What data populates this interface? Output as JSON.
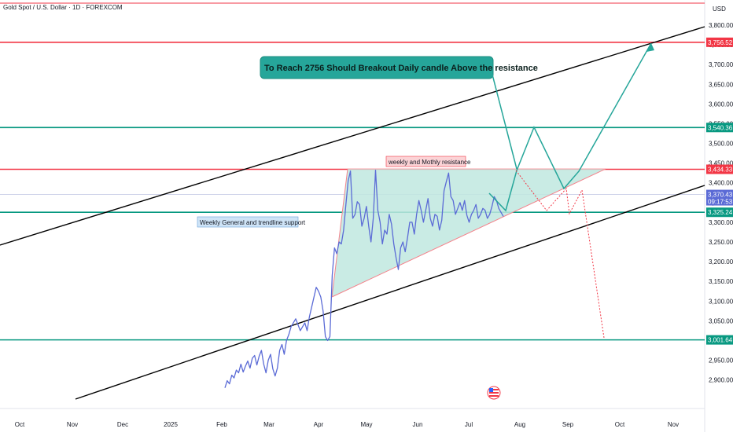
{
  "header": {
    "symbol_title": "Gold Spot / U.S. Dollar · 1D · FOREXCOM",
    "currency": "USD"
  },
  "colors": {
    "red_line": "#f23645",
    "green_line": "#089981",
    "price_line": "#5b6bd6",
    "wedge_fill": "#bfe8df",
    "callout_bg": "#26a69a",
    "current_badge": "#5b6bd6",
    "axis_text": "#131722"
  },
  "chart_data": {
    "type": "line",
    "y_axis": {
      "min": 2865,
      "max": 3820,
      "ticks": [
        "3,800.00",
        "3,750.00",
        "3,700.00",
        "3,650.00",
        "3,600.00",
        "3,550.00",
        "3,500.00",
        "3,450.00",
        "3,400.00",
        "3,350.00",
        "3,300.00",
        "3,250.00",
        "3,200.00",
        "3,150.00",
        "3,100.00",
        "3,050.00",
        "3,000.00",
        "2,950.00",
        "2,900.00"
      ]
    },
    "x_axis": {
      "labels": [
        "Oct",
        "Nov",
        "Dec",
        "2025",
        "Feb",
        "Mar",
        "Apr",
        "May",
        "Jun",
        "Jul",
        "Aug",
        "Sep",
        "Oct",
        "Nov"
      ]
    },
    "price_badges": [
      {
        "label": "3,756.52",
        "value": 3756.52,
        "color": "#f23645"
      },
      {
        "label": "3,540.36",
        "value": 3540.36,
        "color": "#089981"
      },
      {
        "label": "3,434.33",
        "value": 3434.33,
        "color": "#f23645"
      },
      {
        "label": "3,370.43",
        "sublabel": "09:17:53",
        "value": 3370.43,
        "color": "#5b6bd6"
      },
      {
        "label": "3,325.24",
        "value": 3325.24,
        "color": "#089981"
      },
      {
        "label": "3,001.64",
        "value": 3001.64,
        "color": "#089981"
      }
    ],
    "horizontal_levels": [
      {
        "value": 3820,
        "color": "#f23645"
      },
      {
        "value": 3756.52,
        "color": "#f23645"
      },
      {
        "value": 3540.36,
        "color": "#089981"
      },
      {
        "value": 3434.33,
        "color": "#f23645"
      },
      {
        "value": 3325.24,
        "color": "#089981"
      },
      {
        "value": 3001.64,
        "color": "#089981"
      }
    ],
    "annotations": [
      {
        "text": "To Reach 2756 Should Breakout Daily candle Above the resistance",
        "type": "callout"
      },
      {
        "text": "weekly and Mothly resistance",
        "type": "label-red"
      },
      {
        "text": "Weekly General and trendline support",
        "type": "label-blue"
      }
    ],
    "series": [
      {
        "values": [
          2880,
          2898,
          2890,
          2912,
          2905,
          2925,
          2918,
          2940,
          2920,
          2935,
          2948,
          2930,
          2955,
          2962,
          2938,
          2960,
          2975,
          2940,
          2918,
          2950,
          2965,
          2928,
          2910,
          2930,
          2975,
          2990,
          2965,
          3000,
          3015,
          3035,
          3045,
          3055,
          3040,
          3025,
          3035,
          3045,
          3025,
          3060,
          3085,
          3110,
          3135,
          3125,
          3110,
          3075,
          3010,
          3000,
          3010,
          3165,
          3235,
          3220,
          3250,
          3245,
          3280,
          3345,
          3405,
          3430,
          3310,
          3320,
          3352,
          3345,
          3290,
          3310,
          3340,
          3290,
          3250,
          3310,
          3432,
          3330,
          3300,
          3245,
          3280,
          3270,
          3320,
          3295,
          3245,
          3210,
          3180,
          3235,
          3250,
          3225,
          3260,
          3300,
          3300,
          3270,
          3320,
          3355,
          3330,
          3300,
          3330,
          3360,
          3310,
          3290,
          3320,
          3315,
          3280,
          3305,
          3380,
          3403,
          3425,
          3365,
          3355,
          3320,
          3335,
          3350,
          3330,
          3355,
          3318,
          3300,
          3320,
          3330,
          3345,
          3310,
          3320,
          3335,
          3330,
          3310,
          3320,
          3340,
          3365,
          3355,
          3335,
          3325,
          3315
        ]
      }
    ]
  }
}
